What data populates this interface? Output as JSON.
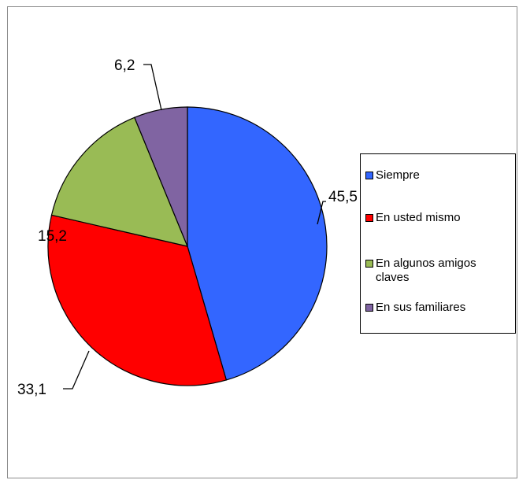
{
  "chart_data": {
    "type": "pie",
    "categories": [
      "Siempre",
      "En usted mismo",
      "En algunos amigos claves",
      "En sus familiares"
    ],
    "values": [
      45.5,
      33.1,
      15.2,
      6.2
    ],
    "data_labels": [
      "45,5",
      "33,1",
      "15,2",
      "6,2"
    ],
    "colors": [
      "#3366ff",
      "#ff0000",
      "#99bb55",
      "#8064a2"
    ],
    "legend_position": "right",
    "title": ""
  },
  "legend": {
    "items": [
      {
        "label": "Siempre",
        "color": "#3366ff"
      },
      {
        "label": "En usted mismo",
        "color": "#ff0000"
      },
      {
        "label": "En algunos amigos claves",
        "color": "#99bb55"
      },
      {
        "label": "En sus familiares",
        "color": "#8064a2"
      }
    ]
  }
}
